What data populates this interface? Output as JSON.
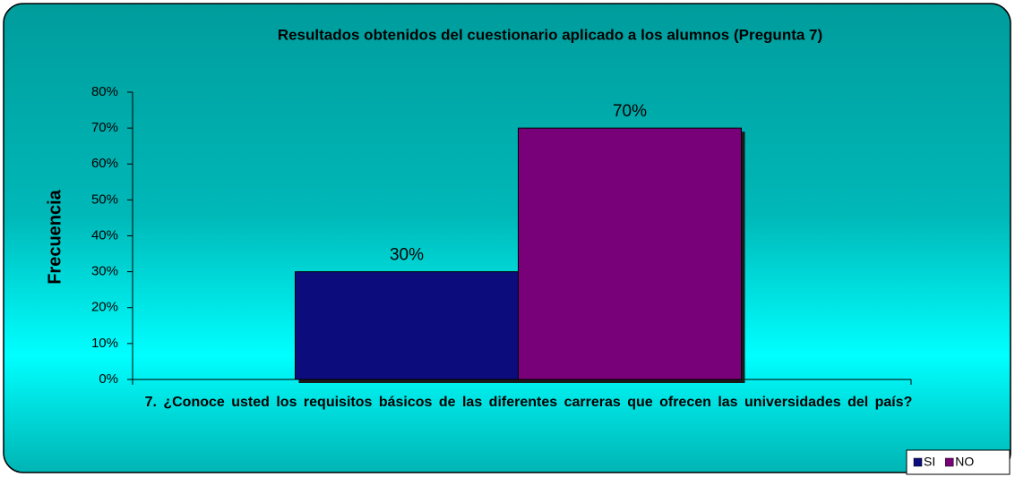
{
  "chart_data": {
    "type": "bar",
    "title": "Resultados obtenidos del cuestionario aplicado a los alumnos (Pregunta 7)",
    "y_label": "Frecuencia",
    "categories": [
      "7. ¿Conoce usted los requisitos básicos de las diferentes carreras que ofrecen las universidades del país?"
    ],
    "series": [
      {
        "name": "SI",
        "color": "#0c0c7c",
        "values": [
          30
        ],
        "value_labels": [
          "30%"
        ]
      },
      {
        "name": "NO",
        "color": "#780078",
        "values": [
          70
        ],
        "value_labels": [
          "70%"
        ]
      }
    ],
    "ylim": [
      0,
      80
    ],
    "yticks": [
      {
        "value": 0,
        "label": "0%"
      },
      {
        "value": 10,
        "label": "10%"
      },
      {
        "value": 20,
        "label": "20%"
      },
      {
        "value": 30,
        "label": "30%"
      },
      {
        "value": 40,
        "label": "40%"
      },
      {
        "value": 50,
        "label": "50%"
      },
      {
        "value": 60,
        "label": "60%"
      },
      {
        "value": 70,
        "label": "70%"
      },
      {
        "value": 80,
        "label": "80%"
      }
    ],
    "grid": false,
    "legend": "bottom-right"
  }
}
